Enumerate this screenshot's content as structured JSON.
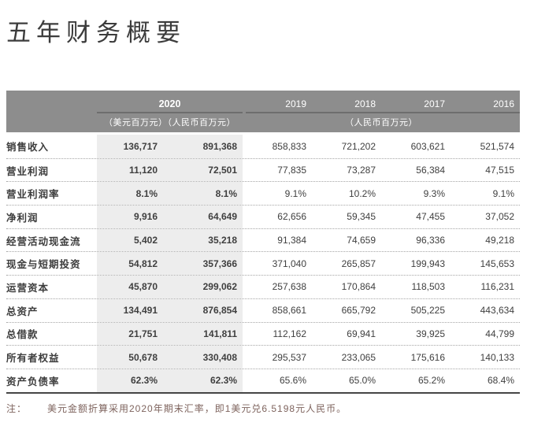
{
  "page": {
    "title": "五年财务概要"
  },
  "table": {
    "header": {
      "year_2020": "2020",
      "years": [
        "2019",
        "2018",
        "2017",
        "2016"
      ],
      "unit_2020": "（美元百万元）（人民币百万元）",
      "unit_other": "（人民币百万元）"
    },
    "rows": [
      {
        "label": "销售收入",
        "usd_2020": "136,717",
        "rmb_2020": "891,368",
        "values": [
          "858,833",
          "721,202",
          "603,621",
          "521,574"
        ]
      },
      {
        "label": "营业利润",
        "usd_2020": "11,120",
        "rmb_2020": "72,501",
        "values": [
          "77,835",
          "73,287",
          "56,384",
          "47,515"
        ]
      },
      {
        "label": "营业利润率",
        "usd_2020": "8.1%",
        "rmb_2020": "8.1%",
        "values": [
          "9.1%",
          "10.2%",
          "9.3%",
          "9.1%"
        ]
      },
      {
        "label": "净利润",
        "usd_2020": "9,916",
        "rmb_2020": "64,649",
        "values": [
          "62,656",
          "59,345",
          "47,455",
          "37,052"
        ]
      },
      {
        "label": "经营活动现金流",
        "usd_2020": "5,402",
        "rmb_2020": "35,218",
        "values": [
          "91,384",
          "74,659",
          "96,336",
          "49,218"
        ]
      },
      {
        "label": "现金与短期投资",
        "usd_2020": "54,812",
        "rmb_2020": "357,366",
        "values": [
          "371,040",
          "265,857",
          "199,943",
          "145,653"
        ]
      },
      {
        "label": "运营资本",
        "usd_2020": "45,870",
        "rmb_2020": "299,062",
        "values": [
          "257,638",
          "170,864",
          "118,503",
          "116,231"
        ]
      },
      {
        "label": "总资产",
        "usd_2020": "134,491",
        "rmb_2020": "876,854",
        "values": [
          "858,661",
          "665,792",
          "505,225",
          "443,634"
        ]
      },
      {
        "label": "总借款",
        "usd_2020": "21,751",
        "rmb_2020": "141,811",
        "values": [
          "112,162",
          "69,941",
          "39,925",
          "44,799"
        ]
      },
      {
        "label": "所有者权益",
        "usd_2020": "50,678",
        "rmb_2020": "330,408",
        "values": [
          "295,537",
          "233,065",
          "175,616",
          "140,133"
        ]
      },
      {
        "label": "资产负债率",
        "usd_2020": "62.3%",
        "rmb_2020": "62.3%",
        "values": [
          "65.6%",
          "65.0%",
          "65.2%",
          "68.4%"
        ]
      }
    ]
  },
  "footnote": {
    "label": "注：",
    "text": "美元金额折算采用2020年期末汇率，即1美元兑6.5198元人民币。"
  },
  "colors": {
    "header_bg": "#8d8d8d",
    "header_rule": "#6e6e6e",
    "shaded_column_bg": "#ededed",
    "body_text": "#3f3f3f",
    "bottom_border": "#454545",
    "footnote_text": "#7e635d"
  }
}
